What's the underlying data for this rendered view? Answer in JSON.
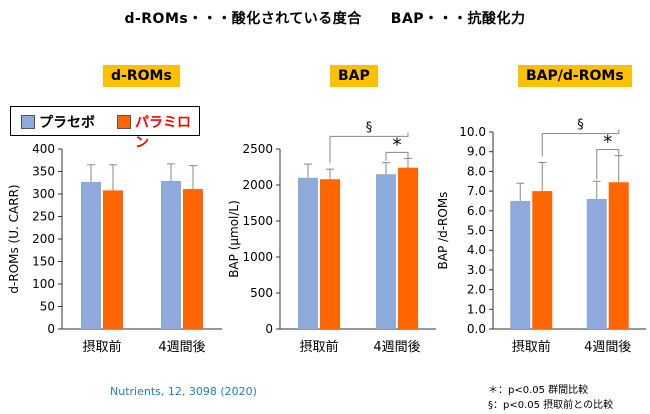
{
  "header": "d-ROMs・・・酸化されている度合　　BAP・・・抗酸化力",
  "colors": {
    "placebo": "#8eaadb",
    "paramylon": "#ff6600",
    "title_bg": "#ffc000",
    "citation": "#1f7dc8"
  },
  "legend": {
    "placebo_label": "プラセボ",
    "paramylon_label": "パラミロン"
  },
  "chart_data": [
    {
      "type": "bar",
      "title": "d-ROMs",
      "ylabel": "d-ROMs (U. CARR)",
      "xlabel": "",
      "categories": [
        "摂取前",
        "4週間後"
      ],
      "ylim": [
        0,
        400
      ],
      "yticks": [
        "0",
        "50",
        "100",
        "150",
        "200",
        "250",
        "300",
        "350",
        "400"
      ],
      "series": [
        {
          "name": "プラセボ",
          "values": [
            327,
            329
          ],
          "errors": [
            38,
            38
          ]
        },
        {
          "name": "パラミロン",
          "values": [
            308,
            311
          ],
          "errors": [
            57,
            52
          ]
        }
      ],
      "annotations": []
    },
    {
      "type": "bar",
      "title": "BAP",
      "ylabel": "BAP (μmol/L)",
      "xlabel": "",
      "categories": [
        "摂取前",
        "4週間後"
      ],
      "ylim": [
        0,
        2500
      ],
      "yticks": [
        "0",
        "500",
        "1000",
        "1500",
        "2000",
        "2500"
      ],
      "series": [
        {
          "name": "プラセボ",
          "values": [
            2100,
            2150
          ],
          "errors": [
            190,
            160
          ]
        },
        {
          "name": "パラミロン",
          "values": [
            2080,
            2240
          ],
          "errors": [
            140,
            130
          ]
        }
      ],
      "annotations": [
        "§",
        "*"
      ]
    },
    {
      "type": "bar",
      "title": "BAP/d-ROMs",
      "ylabel": "BAP /d-ROMs",
      "xlabel": "",
      "categories": [
        "摂取前",
        "4週間後"
      ],
      "ylim": [
        0,
        10
      ],
      "yticks": [
        "0.0",
        "1.0",
        "2.0",
        "3.0",
        "4.0",
        "5.0",
        "6.0",
        "7.0",
        "8.0",
        "9.0",
        "10.0"
      ],
      "series": [
        {
          "name": "プラセボ",
          "values": [
            6.5,
            6.6
          ],
          "errors": [
            0.9,
            0.9
          ]
        },
        {
          "name": "パラミロン",
          "values": [
            7.0,
            7.45
          ],
          "errors": [
            1.45,
            1.35
          ]
        }
      ],
      "annotations": [
        "§",
        "*"
      ]
    }
  ],
  "citation": "Nutrients, 12, 3098 (2020)",
  "footnotes": [
    "＊：p<0.05 群間比較",
    "§：p<0.05 摂取前との比較"
  ]
}
